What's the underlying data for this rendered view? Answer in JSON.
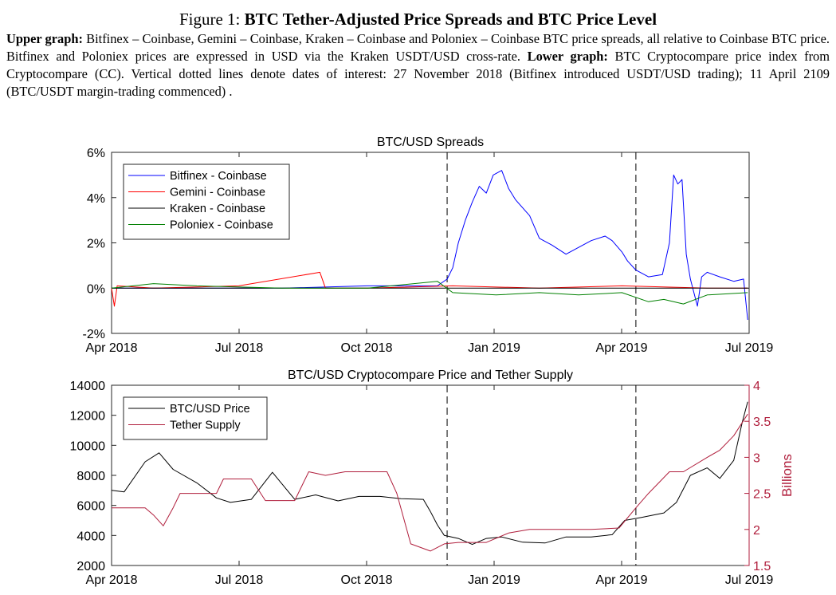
{
  "caption": {
    "figure_label": "Figure 1:",
    "title": "BTC Tether-Adjusted Price Spreads and BTC Price Level",
    "upper_lead": "Upper graph:",
    "upper_text": "Bitfinex – Coinbase, Gemini – Coinbase, Kraken – Coinbase and Poloniex – Coinbase BTC price spreads, all relative to Coinbase BTC price. Bitfinex and Poloniex prices are expressed in USD via the Kraken USDT/USD cross-rate.",
    "lower_lead": "Lower graph:",
    "lower_text": "BTC Cryptocompare price index from Cryptocompare (CC). Vertical dotted lines denote dates of interest: 27 November 2018 (Bitfinex introduced USDT/USD trading); 11 April 2109 (BTC/USDT margin-trading commenced) ."
  },
  "chart_data": [
    {
      "type": "line",
      "title": "BTC/USD Spreads",
      "x_ticks": [
        "Apr 2018",
        "Jul 2018",
        "Oct 2018",
        "Jan 2019",
        "Apr 2019",
        "Jul 2019"
      ],
      "xlim": [
        "2018-04-01",
        "2019-07-01"
      ],
      "ylim": [
        -2,
        6
      ],
      "y_ticks": [
        "-2%",
        "0%",
        "2%",
        "4%",
        "6%"
      ],
      "legend_position": "top-left",
      "grid": false,
      "vlines": [
        "2018-11-27",
        "2019-04-11"
      ],
      "series": [
        {
          "name": "Bitfinex - Coinbase",
          "color": "#0000ff",
          "x": [
            "2018-04-01",
            "2018-06-01",
            "2018-08-01",
            "2018-10-01",
            "2018-11-01",
            "2018-11-20",
            "2018-11-27",
            "2018-12-01",
            "2018-12-05",
            "2018-12-10",
            "2018-12-15",
            "2018-12-20",
            "2018-12-25",
            "2018-12-30",
            "2019-01-05",
            "2019-01-10",
            "2019-01-15",
            "2019-01-25",
            "2019-02-01",
            "2019-02-10",
            "2019-02-20",
            "2019-03-01",
            "2019-03-10",
            "2019-03-20",
            "2019-03-25",
            "2019-04-01",
            "2019-04-05",
            "2019-04-11",
            "2019-04-20",
            "2019-04-30",
            "2019-05-05",
            "2019-05-08",
            "2019-05-11",
            "2019-05-14",
            "2019-05-17",
            "2019-05-20",
            "2019-05-25",
            "2019-05-28",
            "2019-06-01",
            "2019-06-10",
            "2019-06-20",
            "2019-06-27",
            "2019-06-30"
          ],
          "values": [
            0.0,
            0.0,
            0.0,
            0.1,
            0.1,
            0.1,
            0.4,
            0.9,
            2.0,
            3.0,
            3.8,
            4.5,
            4.2,
            5.0,
            5.2,
            4.4,
            3.9,
            3.2,
            2.2,
            1.9,
            1.5,
            1.8,
            2.1,
            2.3,
            2.1,
            1.6,
            1.2,
            0.8,
            0.5,
            0.6,
            2.0,
            5.0,
            4.6,
            4.8,
            1.5,
            0.4,
            -0.8,
            0.5,
            0.7,
            0.5,
            0.3,
            0.4,
            -1.4
          ]
        },
        {
          "name": "Gemini - Coinbase",
          "color": "#ff0000",
          "x": [
            "2018-04-01",
            "2018-04-03",
            "2018-04-05",
            "2018-05-01",
            "2018-07-01",
            "2018-08-28",
            "2018-09-01",
            "2018-10-01",
            "2018-12-01",
            "2019-02-01",
            "2019-04-01",
            "2019-06-01",
            "2019-06-30"
          ],
          "values": [
            0.0,
            -0.8,
            0.1,
            0.0,
            0.1,
            0.7,
            0.0,
            0.0,
            0.1,
            0.0,
            0.1,
            0.0,
            0.0
          ]
        },
        {
          "name": "Kraken - Coinbase",
          "color": "#000000",
          "x": [
            "2018-04-01",
            "2018-06-01",
            "2018-08-01",
            "2018-10-01",
            "2018-12-01",
            "2019-02-01",
            "2019-04-01",
            "2019-06-01",
            "2019-06-30"
          ],
          "values": [
            0.0,
            0.0,
            0.0,
            0.0,
            0.0,
            0.0,
            0.0,
            0.0,
            0.0
          ]
        },
        {
          "name": "Poloniex - Coinbase",
          "color": "#008000",
          "x": [
            "2018-04-01",
            "2018-05-01",
            "2018-06-01",
            "2018-08-01",
            "2018-10-01",
            "2018-11-20",
            "2018-12-01",
            "2019-01-01",
            "2019-02-01",
            "2019-03-01",
            "2019-04-01",
            "2019-04-20",
            "2019-05-01",
            "2019-05-15",
            "2019-06-01",
            "2019-06-30"
          ],
          "values": [
            0.0,
            0.2,
            0.1,
            0.0,
            0.0,
            0.3,
            -0.2,
            -0.3,
            -0.2,
            -0.3,
            -0.2,
            -0.6,
            -0.5,
            -0.7,
            -0.3,
            -0.2
          ]
        }
      ]
    },
    {
      "type": "line",
      "title": "BTC/USD Cryptocompare Price and Tether Supply",
      "x_ticks": [
        "Apr 2018",
        "Jul 2018",
        "Oct 2018",
        "Jan 2019",
        "Apr 2019",
        "Jul 2019"
      ],
      "xlim": [
        "2018-04-01",
        "2019-07-01"
      ],
      "ylim": [
        2000,
        14000
      ],
      "y_ticks": [
        "2000",
        "4000",
        "6000",
        "8000",
        "10000",
        "12000",
        "14000"
      ],
      "y2lim": [
        1.5,
        4
      ],
      "y2_ticks": [
        "1.5",
        "2",
        "2.5",
        "3",
        "3.5",
        "4"
      ],
      "y2label": "Billions",
      "legend_position": "top-left",
      "grid": false,
      "vlines": [
        "2018-11-27",
        "2019-04-11"
      ],
      "series": [
        {
          "name": "BTC/USD Price",
          "color": "#000000",
          "axis": "left",
          "x": [
            "2018-04-01",
            "2018-04-10",
            "2018-04-25",
            "2018-05-05",
            "2018-05-15",
            "2018-06-01",
            "2018-06-15",
            "2018-06-25",
            "2018-07-10",
            "2018-07-25",
            "2018-08-10",
            "2018-08-25",
            "2018-09-10",
            "2018-09-25",
            "2018-10-10",
            "2018-10-25",
            "2018-11-10",
            "2018-11-15",
            "2018-11-20",
            "2018-11-25",
            "2018-12-05",
            "2018-12-15",
            "2018-12-25",
            "2019-01-05",
            "2019-01-20",
            "2019-02-05",
            "2019-02-20",
            "2019-03-10",
            "2019-03-25",
            "2019-04-03",
            "2019-04-15",
            "2019-05-01",
            "2019-05-10",
            "2019-05-20",
            "2019-06-01",
            "2019-06-10",
            "2019-06-20",
            "2019-06-26",
            "2019-06-30"
          ],
          "values": [
            7000,
            6900,
            8900,
            9500,
            8400,
            7500,
            6500,
            6200,
            6400,
            8200,
            6400,
            6700,
            6300,
            6600,
            6600,
            6450,
            6400,
            5600,
            4700,
            4000,
            3800,
            3400,
            3800,
            3900,
            3550,
            3500,
            3900,
            3900,
            4050,
            5000,
            5200,
            5500,
            6200,
            8000,
            8500,
            7800,
            9000,
            11500,
            12900
          ]
        },
        {
          "name": "Tether Supply",
          "color": "#b01e3c",
          "axis": "right",
          "x": [
            "2018-04-01",
            "2018-04-25",
            "2018-05-01",
            "2018-05-08",
            "2018-05-15",
            "2018-05-20",
            "2018-06-15",
            "2018-06-20",
            "2018-07-10",
            "2018-07-20",
            "2018-08-10",
            "2018-08-20",
            "2018-09-01",
            "2018-09-15",
            "2018-10-01",
            "2018-10-15",
            "2018-10-22",
            "2018-11-01",
            "2018-11-15",
            "2018-11-25",
            "2018-12-05",
            "2018-12-25",
            "2019-01-10",
            "2019-01-25",
            "2019-02-15",
            "2019-03-10",
            "2019-03-30",
            "2019-04-11",
            "2019-04-20",
            "2019-05-05",
            "2019-05-15",
            "2019-06-01",
            "2019-06-10",
            "2019-06-20",
            "2019-06-30"
          ],
          "values": [
            2.3,
            2.3,
            2.2,
            2.05,
            2.3,
            2.5,
            2.5,
            2.7,
            2.7,
            2.4,
            2.4,
            2.8,
            2.75,
            2.8,
            2.8,
            2.8,
            2.5,
            1.8,
            1.7,
            1.8,
            1.82,
            1.82,
            1.95,
            2.0,
            2.0,
            2.0,
            2.02,
            2.3,
            2.5,
            2.8,
            2.8,
            3.0,
            3.1,
            3.3,
            3.6
          ]
        }
      ]
    }
  ]
}
